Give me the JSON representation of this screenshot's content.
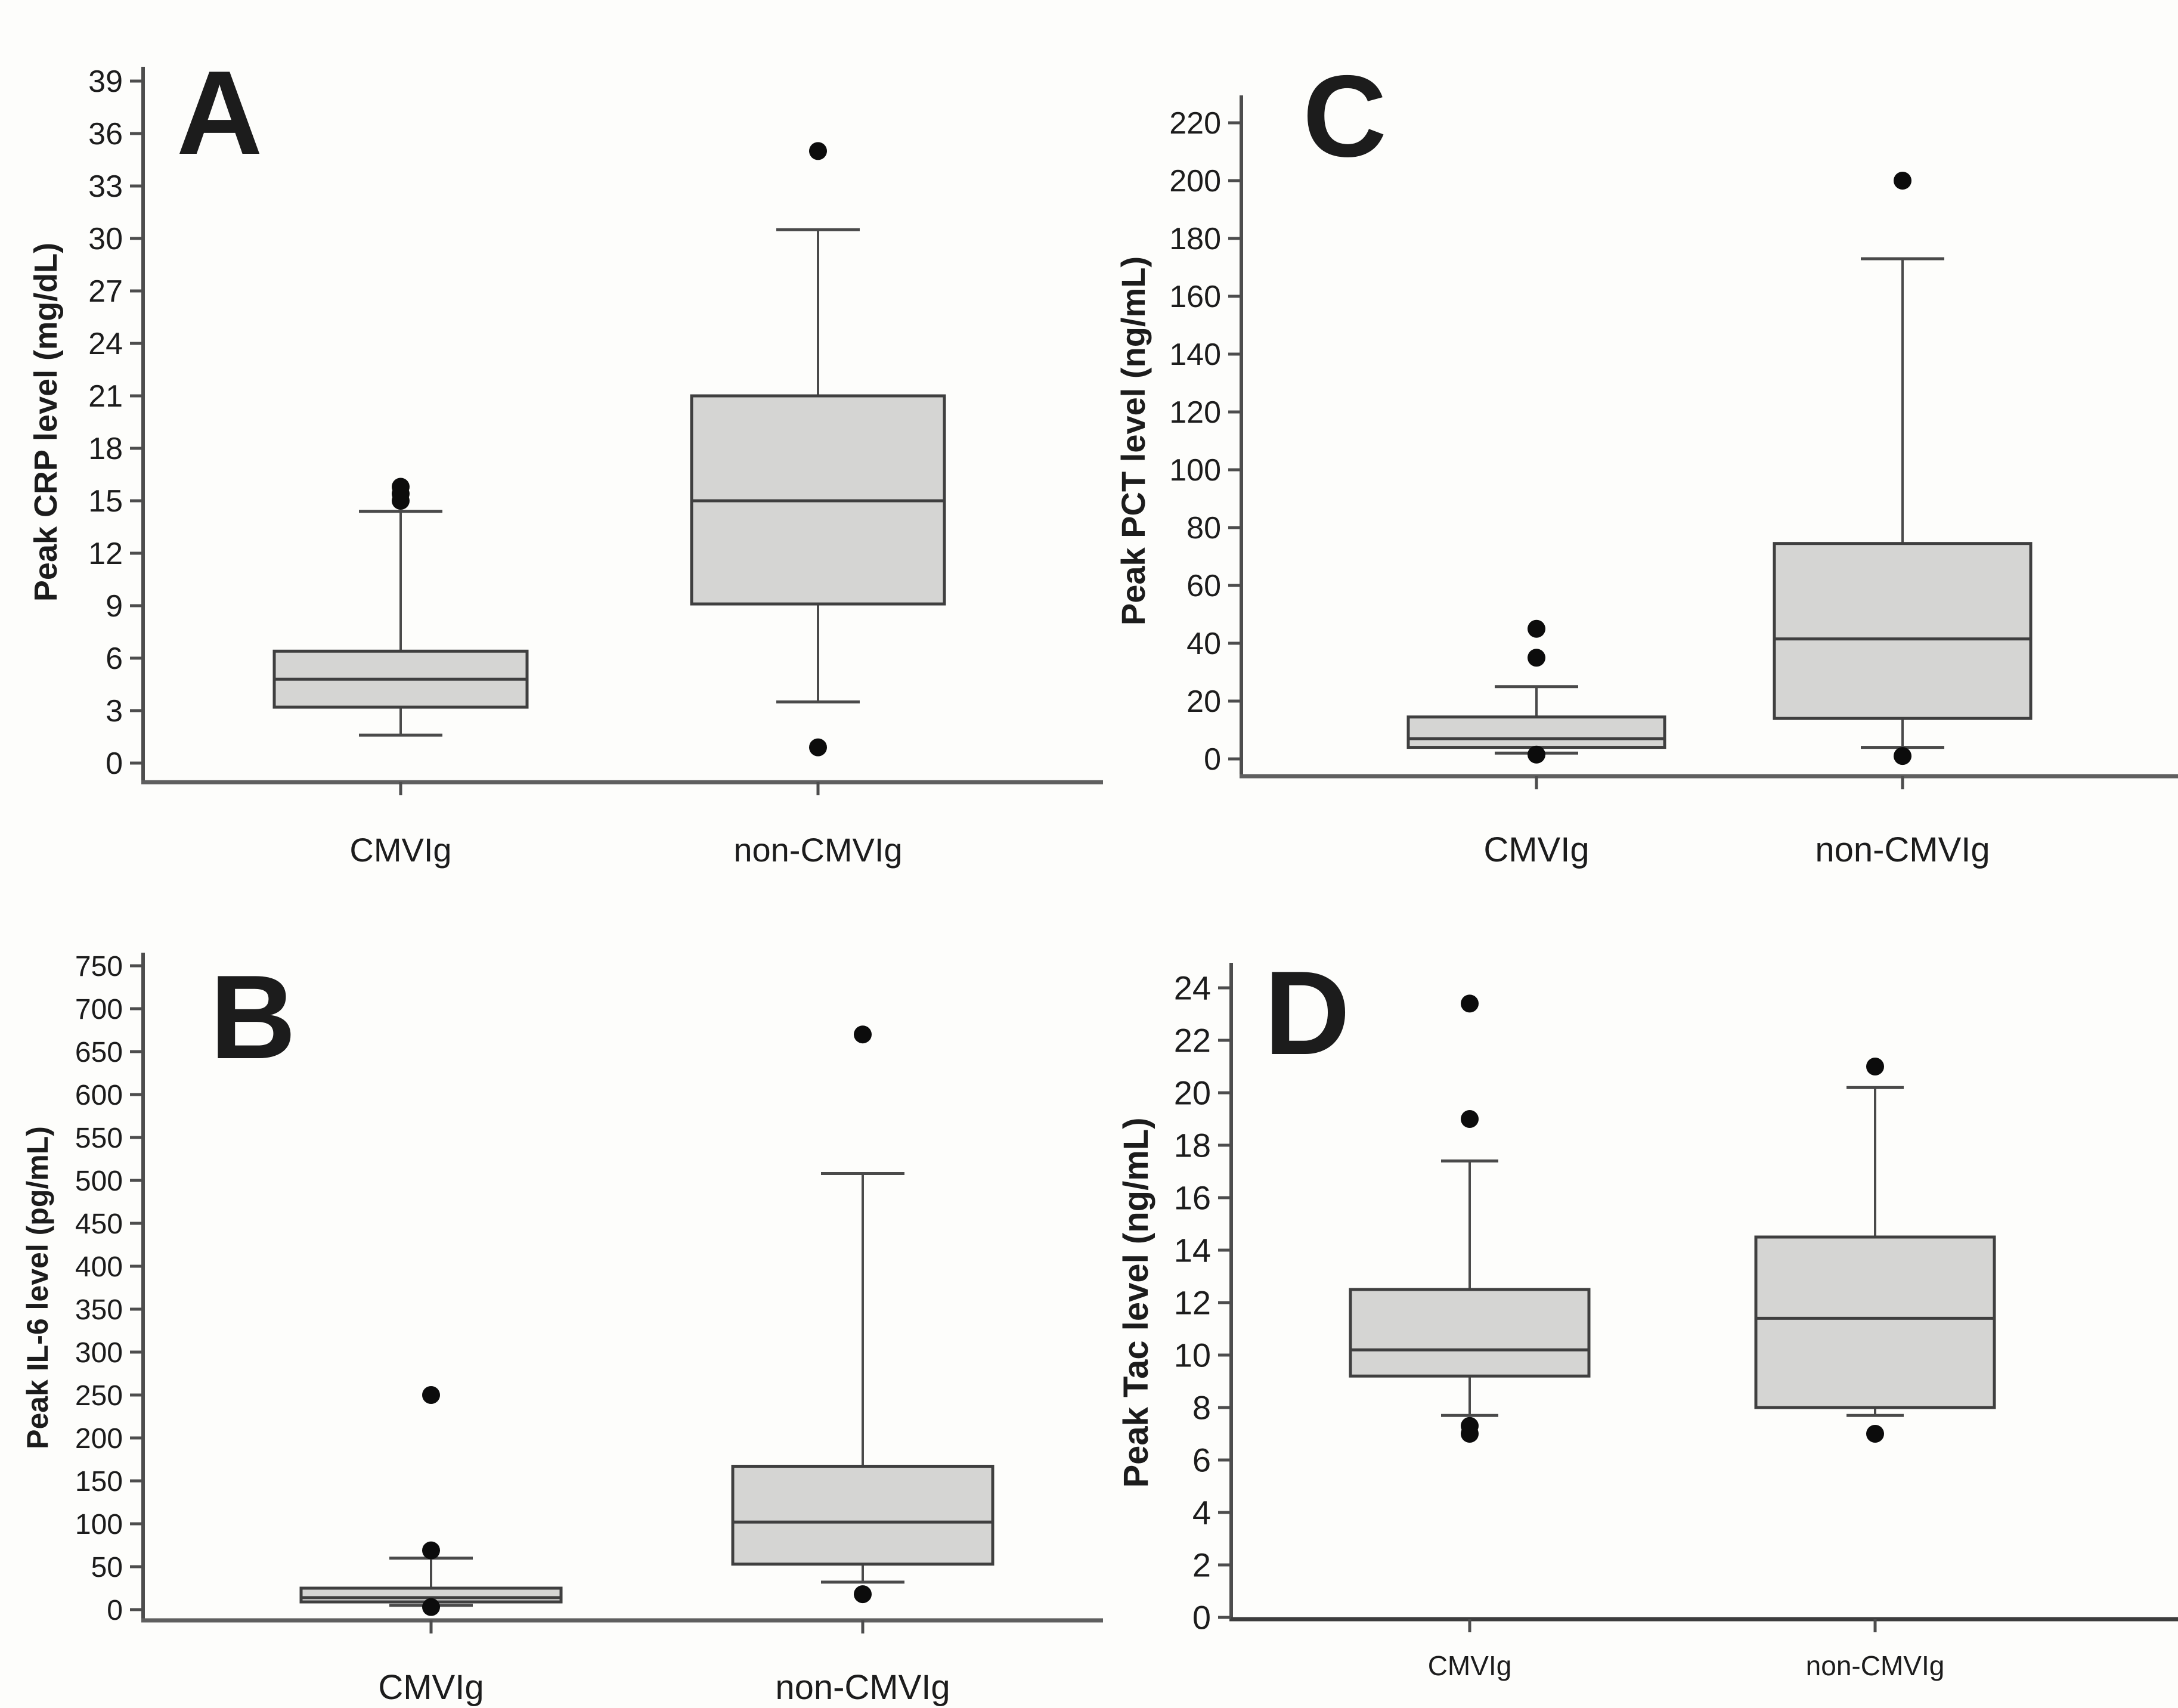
{
  "figure": {
    "background": "#fdfdfb",
    "description": "Four box plots comparing CMVIg and non-CMVIg groups"
  },
  "colors": {
    "box_fill": "#d5d5d3",
    "box_stroke": "#3f3f3f",
    "whisker": "#4a4a4a",
    "axis": "#4d4d4d",
    "baseline_light": "#5f5f5f",
    "baseline_dark": "#3d3d3d",
    "outlier": "#0c0c0c",
    "text": "#1c1c1c"
  },
  "chart_data": [
    {
      "id": "A",
      "type": "box",
      "panel_label": "A",
      "ylabel": "Peak CRP level (mg/dL)",
      "ylim": [
        0,
        39
      ],
      "ytick_step": 3,
      "yticks": [
        0,
        3,
        6,
        9,
        12,
        15,
        18,
        21,
        24,
        27,
        30,
        33,
        36,
        39
      ],
      "grid": false,
      "categories": [
        "CMVIg",
        "non-CMVIg"
      ],
      "boxes": [
        {
          "category": "CMVIg",
          "whisker_low": 1.6,
          "q1": 3.2,
          "median": 4.8,
          "q3": 6.4,
          "whisker_high": 14.4,
          "outliers": [
            15.0,
            15.4,
            15.8
          ]
        },
        {
          "category": "non-CMVIg",
          "whisker_low": 3.5,
          "q1": 9.1,
          "median": 15.0,
          "q3": 21.0,
          "whisker_high": 30.5,
          "outliers": [
            35.0,
            0.9
          ]
        }
      ]
    },
    {
      "id": "C",
      "type": "box",
      "panel_label": "C",
      "ylabel": "Peak PCT level  (ng/mL)",
      "ylim": [
        0,
        220
      ],
      "ytick_step": 20,
      "yticks": [
        0,
        20,
        40,
        60,
        80,
        100,
        120,
        140,
        160,
        180,
        200,
        220
      ],
      "grid": false,
      "categories": [
        "CMVIg",
        "non-CMVIg"
      ],
      "boxes": [
        {
          "category": "CMVIg",
          "whisker_low": 2.0,
          "q1": 4.0,
          "median": 7.0,
          "q3": 14.5,
          "whisker_high": 25.0,
          "outliers": [
            45.0,
            35.0,
            1.5
          ]
        },
        {
          "category": "non-CMVIg",
          "whisker_low": 4.0,
          "q1": 14.0,
          "median": 41.5,
          "q3": 74.5,
          "whisker_high": 173.0,
          "outliers": [
            200.0,
            1.0
          ]
        }
      ]
    },
    {
      "id": "B",
      "type": "box",
      "panel_label": "B",
      "ylabel": "Peak IL-6 level (pg/mL)",
      "ylim": [
        0,
        750
      ],
      "ytick_step": 50,
      "yticks": [
        0,
        50,
        100,
        150,
        200,
        250,
        300,
        350,
        400,
        450,
        500,
        550,
        600,
        650,
        700,
        750
      ],
      "grid": false,
      "categories": [
        "CMVIg",
        "non-CMVIg"
      ],
      "boxes": [
        {
          "category": "CMVIg",
          "whisker_low": 5.0,
          "q1": 9.0,
          "median": 14.0,
          "q3": 25.0,
          "whisker_high": 60.0,
          "outliers": [
            250.0,
            69.0,
            3.0
          ]
        },
        {
          "category": "non-CMVIg",
          "whisker_low": 32.0,
          "q1": 53.0,
          "median": 102.0,
          "q3": 167.0,
          "whisker_high": 508.0,
          "outliers": [
            670.0,
            18.0
          ]
        }
      ]
    },
    {
      "id": "D",
      "type": "box",
      "panel_label": "D",
      "ylabel": "Peak Tac level (ng/mL)",
      "ylim": [
        0,
        24
      ],
      "ytick_step": 2,
      "yticks": [
        0,
        2,
        4,
        6,
        8,
        10,
        12,
        14,
        16,
        18,
        20,
        22,
        24
      ],
      "grid": false,
      "categories": [
        "CMVIg",
        "non-CMVIg"
      ],
      "boxes": [
        {
          "category": "CMVIg",
          "whisker_low": 7.7,
          "q1": 9.2,
          "median": 10.2,
          "q3": 12.5,
          "whisker_high": 17.4,
          "outliers": [
            23.4,
            19.0,
            7.3,
            7.0
          ]
        },
        {
          "category": "non-CMVIg",
          "whisker_low": 7.7,
          "q1": 8.0,
          "median": 11.4,
          "q3": 14.5,
          "whisker_high": 20.2,
          "outliers": [
            21.0,
            7.0
          ]
        }
      ]
    }
  ]
}
